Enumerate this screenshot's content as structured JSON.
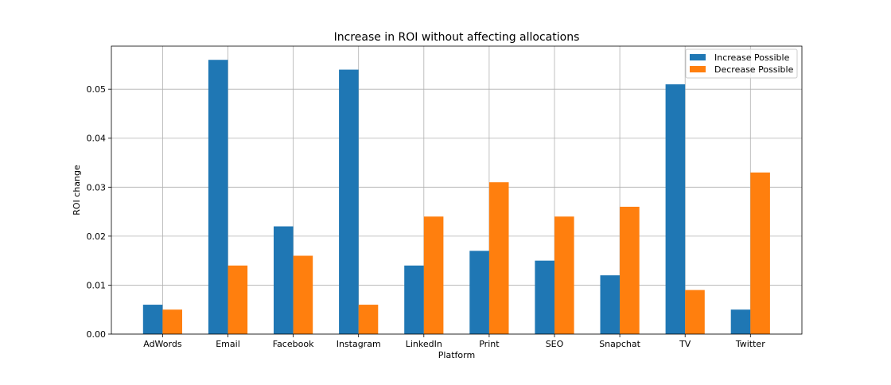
{
  "chart_data": {
    "type": "bar",
    "title": "Increase in ROI without affecting allocations",
    "xlabel": "Platform",
    "ylabel": "ROI change",
    "categories": [
      "AdWords",
      "Email",
      "Facebook",
      "Instagram",
      "LinkedIn",
      "Print",
      "SEO",
      "Snapchat",
      "TV",
      "Twitter"
    ],
    "series": [
      {
        "name": "Increase Possible",
        "color": "#1f77b4",
        "values": [
          0.006,
          0.056,
          0.022,
          0.054,
          0.014,
          0.017,
          0.015,
          0.012,
          0.051,
          0.005
        ]
      },
      {
        "name": "Decrease Possible",
        "color": "#ff7f0e",
        "values": [
          0.005,
          0.014,
          0.016,
          0.006,
          0.024,
          0.031,
          0.024,
          0.026,
          0.009,
          0.033
        ]
      }
    ],
    "ylim": [
      0,
      0.0588
    ],
    "yticks": [
      0.0,
      0.01,
      0.02,
      0.03,
      0.04,
      0.05
    ],
    "ytick_labels": [
      "0.00",
      "0.01",
      "0.02",
      "0.03",
      "0.04",
      "0.05"
    ],
    "grid": true,
    "legend_position": "top-right"
  }
}
